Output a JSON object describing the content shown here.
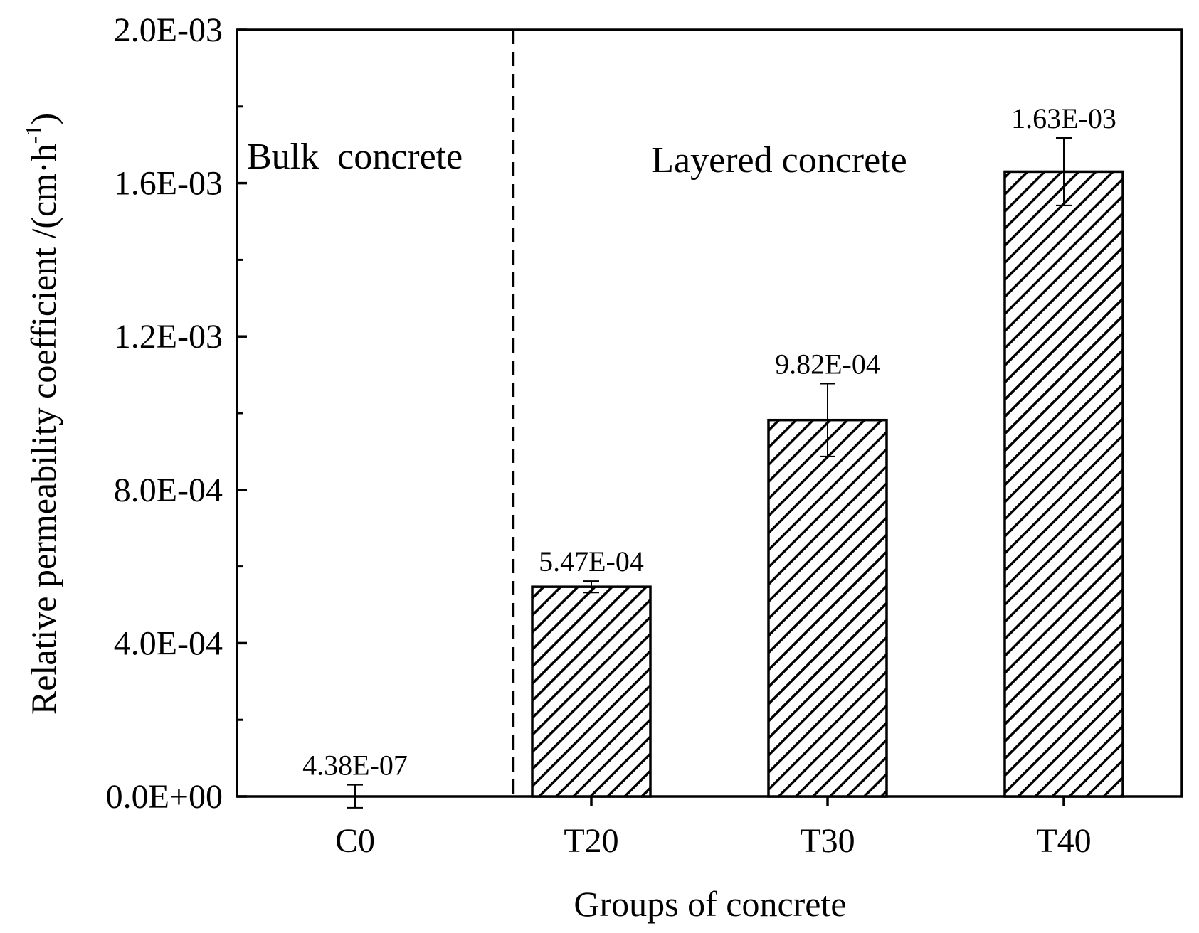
{
  "chart_data": {
    "type": "bar",
    "title": "",
    "xlabel": "Groups of concrete",
    "ylabel": "Relative permeability coefficient /(cm·h",
    "ylabel_sup": "-1",
    "ylabel_close": ")",
    "categories": [
      "C0",
      "T20",
      "T30",
      "T40"
    ],
    "values": [
      4.38e-07,
      0.000547,
      0.000982,
      0.00163
    ],
    "errors": [
      3e-05,
      1.5e-05,
      9.5e-05,
      8.8e-05
    ],
    "data_labels": [
      "4.38E-07",
      "5.47E-04",
      "9.82E-04",
      "1.63E-03"
    ],
    "ylim": [
      0,
      0.002
    ],
    "yticks": [
      0,
      0.0004,
      0.0008,
      0.0012,
      0.0016,
      0.002
    ],
    "ytick_labels": [
      "0.0E+00",
      "4.0E-04",
      "8.0E-04",
      "1.2E-03",
      "1.6E-03",
      "2.0E-03"
    ],
    "grid": false,
    "bar_fill": "hatched",
    "colors": {
      "bar_stroke": "#000000",
      "hatch": "#000000",
      "background": "#ffffff"
    },
    "annotations": {
      "left_region": "Bulk  concrete",
      "right_region": "Layered concrete"
    },
    "divider": {
      "between": [
        "C0",
        "T20"
      ],
      "style": "dashed"
    }
  }
}
